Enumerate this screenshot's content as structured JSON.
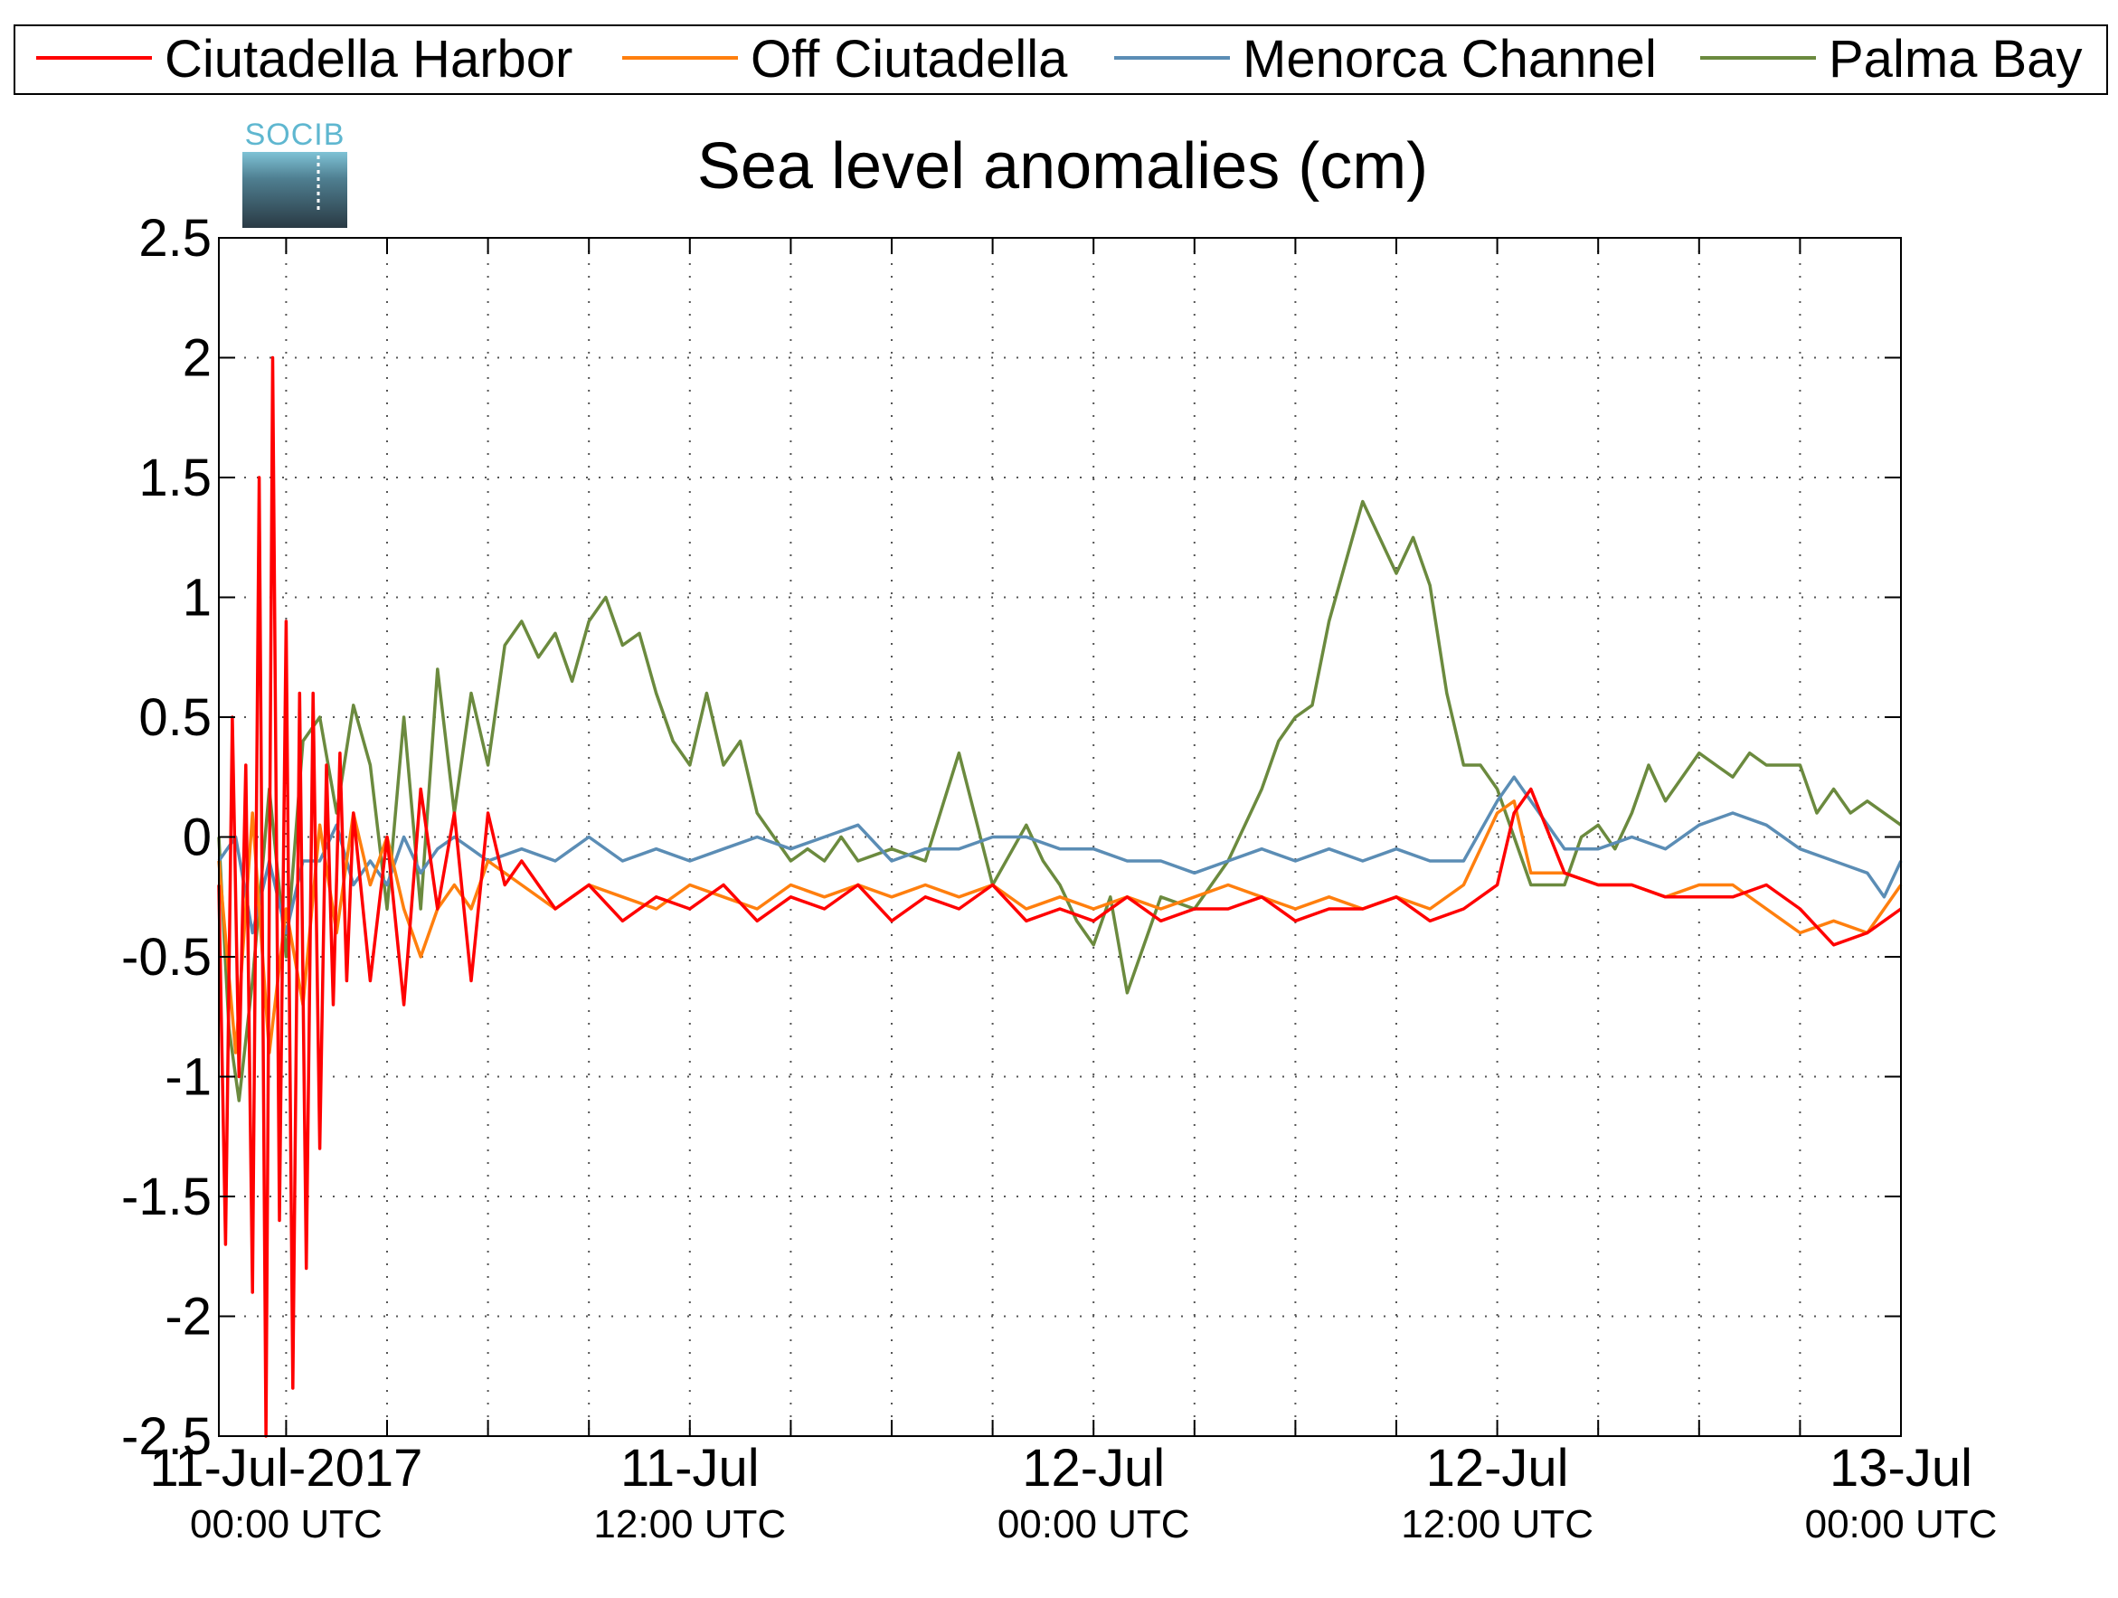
{
  "chart_data": {
    "type": "line",
    "title": "Sea level anomalies (cm)",
    "logo_text": "SOCIB",
    "ylim": [
      -2.5,
      2.5
    ],
    "y_ticks": [
      "2.5",
      "2",
      "1.5",
      "1",
      "0.5",
      "0",
      "-0.5",
      "-1",
      "-1.5",
      "-2",
      "-2.5"
    ],
    "y_tick_values": [
      2.5,
      2,
      1.5,
      1,
      0.5,
      0,
      -0.5,
      -1,
      -1.5,
      -2,
      -2.5
    ],
    "x_unit": "hours since 11-Jul-2017 00:00 UTC",
    "xlim": [
      -2,
      48
    ],
    "x_tick_labels": [
      {
        "h": 0,
        "line1": "11-Jul-2017",
        "line2": "00:00 UTC"
      },
      {
        "h": 12,
        "line1": "11-Jul",
        "line2": "12:00 UTC"
      },
      {
        "h": 24,
        "line1": "12-Jul",
        "line2": "00:00 UTC"
      },
      {
        "h": 36,
        "line1": "12-Jul",
        "line2": "12:00 UTC"
      },
      {
        "h": 48,
        "line1": "13-Jul",
        "line2": "00:00 UTC"
      }
    ],
    "x_grid_hours": [
      0,
      3,
      6,
      9,
      12,
      15,
      18,
      21,
      24,
      27,
      30,
      33,
      36,
      39,
      42,
      45
    ],
    "grid": true,
    "legend_position": "top",
    "series": [
      {
        "name": "Palma Bay",
        "color": "#6b8a3e",
        "x": [
          -2,
          -1.7,
          -1.4,
          -1,
          -0.5,
          0,
          0.5,
          1,
          1.5,
          2,
          2.5,
          3,
          3.5,
          4,
          4.5,
          5,
          5.5,
          6,
          6.5,
          7,
          7.5,
          8,
          8.5,
          9,
          9.5,
          10,
          10.5,
          11,
          11.5,
          12,
          12.5,
          13,
          13.5,
          14,
          14.5,
          15,
          15.5,
          16,
          16.5,
          17,
          18,
          19,
          20,
          21,
          22,
          22.5,
          23,
          23.5,
          24,
          24.5,
          25,
          26,
          27,
          28,
          29,
          29.5,
          30,
          30.5,
          31,
          32,
          33,
          33.5,
          34,
          34.5,
          35,
          35.5,
          36,
          36.5,
          37,
          38,
          38.5,
          39,
          39.5,
          40,
          40.5,
          41,
          42,
          42.5,
          43,
          43.5,
          44,
          45,
          45.5,
          46,
          46.5,
          47,
          48
        ],
        "values": [
          0,
          -0.8,
          -1.1,
          -0.6,
          0.2,
          -0.5,
          0.4,
          0.5,
          0.1,
          0.55,
          0.3,
          -0.3,
          0.5,
          -0.3,
          0.7,
          0.1,
          0.6,
          0.3,
          0.8,
          0.9,
          0.75,
          0.85,
          0.65,
          0.9,
          1.0,
          0.8,
          0.85,
          0.6,
          0.4,
          0.3,
          0.6,
          0.3,
          0.4,
          0.1,
          0.0,
          -0.1,
          -0.05,
          -0.1,
          0.0,
          -0.1,
          -0.05,
          -0.1,
          0.35,
          -0.2,
          0.05,
          -0.1,
          -0.2,
          -0.35,
          -0.45,
          -0.25,
          -0.65,
          -0.25,
          -0.3,
          -0.1,
          0.2,
          0.4,
          0.5,
          0.55,
          0.9,
          1.4,
          1.1,
          1.25,
          1.05,
          0.6,
          0.3,
          0.3,
          0.2,
          0.0,
          -0.2,
          -0.2,
          0.0,
          0.05,
          -0.05,
          0.1,
          0.3,
          0.15,
          0.35,
          0.3,
          0.25,
          0.35,
          0.3,
          0.3,
          0.1,
          0.2,
          0.1,
          0.15,
          0.05
        ]
      },
      {
        "name": "Menorca Channel",
        "color": "#5b8db5",
        "x": [
          -2,
          -1.5,
          -1,
          -0.5,
          0,
          0.5,
          1,
          1.5,
          2,
          2.5,
          3,
          3.5,
          4,
          4.5,
          5,
          5.5,
          6,
          7,
          8,
          9,
          10,
          11,
          12,
          13,
          14,
          15,
          16,
          17,
          18,
          19,
          20,
          21,
          22,
          23,
          24,
          25,
          26,
          27,
          28,
          29,
          30,
          31,
          32,
          33,
          34,
          35,
          36,
          36.5,
          37,
          38,
          39,
          40,
          41,
          42,
          43,
          44,
          45,
          46,
          47,
          47.5,
          48
        ],
        "values": [
          -0.1,
          0.0,
          -0.4,
          -0.1,
          -0.4,
          -0.1,
          -0.1,
          0.05,
          -0.2,
          -0.1,
          -0.2,
          0.0,
          -0.15,
          -0.05,
          0.0,
          -0.05,
          -0.1,
          -0.05,
          -0.1,
          0.0,
          -0.1,
          -0.05,
          -0.1,
          -0.05,
          0.0,
          -0.05,
          0.0,
          0.05,
          -0.1,
          -0.05,
          -0.05,
          0.0,
          0.0,
          -0.05,
          -0.05,
          -0.1,
          -0.1,
          -0.15,
          -0.1,
          -0.05,
          -0.1,
          -0.05,
          -0.1,
          -0.05,
          -0.1,
          -0.1,
          0.15,
          0.25,
          0.15,
          -0.05,
          -0.05,
          0.0,
          -0.05,
          0.05,
          0.1,
          0.05,
          -0.05,
          -0.1,
          -0.15,
          -0.25,
          -0.1
        ]
      },
      {
        "name": "Off Ciutadella",
        "color": "#ff7f0e",
        "x": [
          -2,
          -1.5,
          -1,
          -0.5,
          0,
          0.5,
          1,
          1.5,
          2,
          2.5,
          3,
          3.5,
          4,
          4.5,
          5,
          5.5,
          6,
          7,
          8,
          9,
          10,
          11,
          12,
          13,
          14,
          15,
          16,
          17,
          18,
          19,
          20,
          21,
          22,
          23,
          24,
          25,
          26,
          27,
          28,
          29,
          30,
          31,
          32,
          33,
          34,
          35,
          36,
          36.5,
          37,
          38,
          39,
          40,
          41,
          42,
          43,
          44,
          45,
          46,
          47,
          48
        ],
        "values": [
          -0.1,
          -0.9,
          0.1,
          -0.9,
          -0.3,
          -0.7,
          0.05,
          -0.4,
          0.1,
          -0.2,
          0.0,
          -0.3,
          -0.5,
          -0.3,
          -0.2,
          -0.3,
          -0.1,
          -0.2,
          -0.3,
          -0.2,
          -0.25,
          -0.3,
          -0.2,
          -0.25,
          -0.3,
          -0.2,
          -0.25,
          -0.2,
          -0.25,
          -0.2,
          -0.25,
          -0.2,
          -0.3,
          -0.25,
          -0.3,
          -0.25,
          -0.3,
          -0.25,
          -0.2,
          -0.25,
          -0.3,
          -0.25,
          -0.3,
          -0.25,
          -0.3,
          -0.2,
          0.1,
          0.15,
          -0.15,
          -0.15,
          -0.2,
          -0.2,
          -0.25,
          -0.2,
          -0.2,
          -0.3,
          -0.4,
          -0.35,
          -0.4,
          -0.2
        ]
      },
      {
        "name": "Ciutadella Harbor",
        "color": "#ff0000",
        "x": [
          -2,
          -1.8,
          -1.6,
          -1.4,
          -1.2,
          -1,
          -0.8,
          -0.6,
          -0.4,
          -0.2,
          0,
          0.2,
          0.4,
          0.6,
          0.8,
          1,
          1.2,
          1.4,
          1.6,
          1.8,
          2,
          2.5,
          3,
          3.5,
          4,
          4.5,
          5,
          5.5,
          6,
          6.5,
          7,
          8,
          9,
          10,
          11,
          12,
          13,
          14,
          15,
          16,
          17,
          18,
          19,
          20,
          21,
          22,
          23,
          24,
          25,
          26,
          27,
          28,
          29,
          30,
          31,
          32,
          33,
          34,
          35,
          36,
          36.5,
          37,
          38,
          39,
          40,
          41,
          42,
          43,
          44,
          45,
          46,
          47,
          48
        ],
        "values": [
          -0.2,
          -1.7,
          0.5,
          -1.0,
          0.3,
          -1.9,
          1.5,
          -2.5,
          2.0,
          -1.6,
          0.9,
          -2.3,
          0.6,
          -1.8,
          0.6,
          -1.3,
          0.3,
          -0.7,
          0.35,
          -0.6,
          0.1,
          -0.6,
          0.0,
          -0.7,
          0.2,
          -0.3,
          0.1,
          -0.6,
          0.1,
          -0.2,
          -0.1,
          -0.3,
          -0.2,
          -0.35,
          -0.25,
          -0.3,
          -0.2,
          -0.35,
          -0.25,
          -0.3,
          -0.2,
          -0.35,
          -0.25,
          -0.3,
          -0.2,
          -0.35,
          -0.3,
          -0.35,
          -0.25,
          -0.35,
          -0.3,
          -0.3,
          -0.25,
          -0.35,
          -0.3,
          -0.3,
          -0.25,
          -0.35,
          -0.3,
          -0.2,
          0.1,
          0.2,
          -0.15,
          -0.2,
          -0.2,
          -0.25,
          -0.25,
          -0.25,
          -0.2,
          -0.3,
          -0.45,
          -0.4,
          -0.3
        ]
      }
    ],
    "legend": [
      {
        "name": "Ciutadella Harbor",
        "color": "#ff0000"
      },
      {
        "name": "Off Ciutadella",
        "color": "#ff7f0e"
      },
      {
        "name": "Menorca Channel",
        "color": "#5b8db5"
      },
      {
        "name": "Palma Bay",
        "color": "#6b8a3e"
      }
    ]
  }
}
